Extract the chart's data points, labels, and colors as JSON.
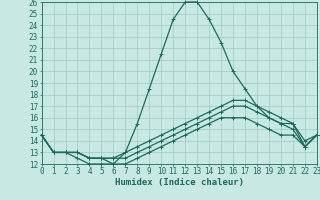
{
  "title": "",
  "xlabel": "Humidex (Indice chaleur)",
  "xlim": [
    0,
    23
  ],
  "ylim": [
    12,
    26
  ],
  "yticks": [
    12,
    13,
    14,
    15,
    16,
    17,
    18,
    19,
    20,
    21,
    22,
    23,
    24,
    25,
    26
  ],
  "xticks": [
    0,
    1,
    2,
    3,
    4,
    5,
    6,
    7,
    8,
    9,
    10,
    11,
    12,
    13,
    14,
    15,
    16,
    17,
    18,
    19,
    20,
    21,
    22,
    23
  ],
  "bg_color": "#c8e8e4",
  "line_color": "#1a6b5a",
  "grid_color": "#a0c8c4",
  "lines": [
    {
      "x": [
        0,
        1,
        2,
        3,
        4,
        5,
        6,
        7,
        8,
        9,
        10,
        11,
        12,
        13,
        14,
        15,
        16,
        17,
        18,
        19,
        20,
        21,
        22,
        23
      ],
      "y": [
        14.5,
        13.0,
        13.0,
        12.5,
        12.0,
        12.0,
        12.0,
        13.0,
        15.5,
        18.5,
        21.5,
        24.5,
        26.0,
        26.0,
        24.5,
        22.5,
        20.0,
        18.5,
        17.0,
        16.0,
        15.5,
        15.5,
        13.5,
        14.5
      ]
    },
    {
      "x": [
        0,
        1,
        2,
        3,
        4,
        5,
        6,
        7,
        8,
        9,
        10,
        11,
        12,
        13,
        14,
        15,
        16,
        17,
        18,
        19,
        20,
        21,
        22,
        23
      ],
      "y": [
        14.5,
        13.0,
        13.0,
        13.0,
        12.5,
        12.5,
        12.5,
        13.0,
        13.5,
        14.0,
        14.5,
        15.0,
        15.5,
        16.0,
        16.5,
        17.0,
        17.5,
        17.5,
        17.0,
        16.5,
        16.0,
        15.5,
        14.0,
        14.5
      ]
    },
    {
      "x": [
        0,
        1,
        2,
        3,
        4,
        5,
        6,
        7,
        8,
        9,
        10,
        11,
        12,
        13,
        14,
        15,
        16,
        17,
        18,
        19,
        20,
        21,
        22,
        23
      ],
      "y": [
        14.5,
        13.0,
        13.0,
        13.0,
        12.5,
        12.5,
        12.5,
        12.5,
        13.0,
        13.5,
        14.0,
        14.5,
        15.0,
        15.5,
        16.0,
        16.5,
        17.0,
        17.0,
        16.5,
        16.0,
        15.5,
        15.0,
        13.5,
        14.5
      ]
    },
    {
      "x": [
        0,
        1,
        2,
        3,
        4,
        5,
        6,
        7,
        8,
        9,
        10,
        11,
        12,
        13,
        14,
        15,
        16,
        17,
        18,
        19,
        20,
        21,
        22,
        23
      ],
      "y": [
        14.5,
        13.0,
        13.0,
        13.0,
        12.5,
        12.5,
        12.0,
        12.0,
        12.5,
        13.0,
        13.5,
        14.0,
        14.5,
        15.0,
        15.5,
        16.0,
        16.0,
        16.0,
        15.5,
        15.0,
        14.5,
        14.5,
        13.5,
        14.5
      ]
    }
  ],
  "marker": "+",
  "markersize": 3,
  "linewidth": 0.9,
  "tick_fontsize": 5.5,
  "label_fontsize": 6.5
}
